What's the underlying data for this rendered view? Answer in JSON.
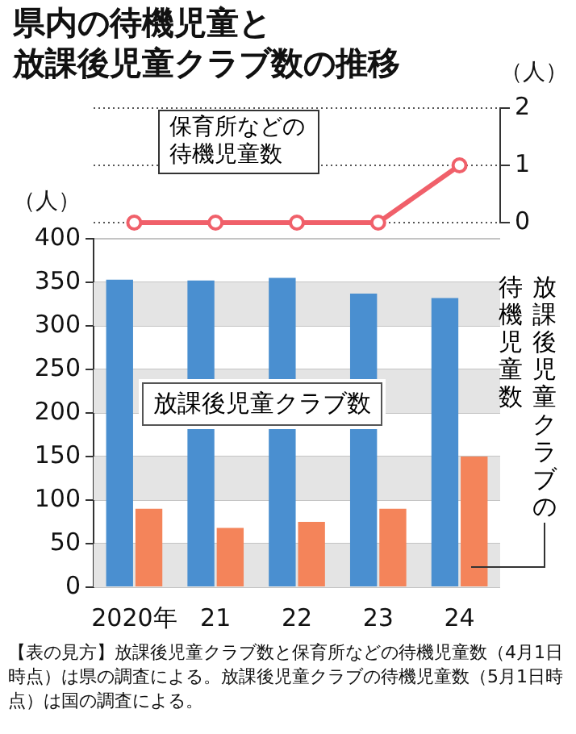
{
  "chart_data": [
    {
      "type": "line",
      "title": "県内の待機児童と放課後児童クラブ数の推移",
      "ylabel": "（人）",
      "ylim": [
        0,
        2
      ],
      "yticks": [
        0,
        1,
        2
      ],
      "grid": "y",
      "legend": false,
      "tick_labels": "y",
      "marker": "circle",
      "series": [
        {
          "name": "保育所などの待機児童数",
          "color": "#f0606a",
          "values": [
            0,
            0,
            0,
            0,
            1
          ]
        }
      ]
    },
    {
      "type": "bar",
      "ylabel": "（人）",
      "categories": [
        "2020年",
        "21",
        "22",
        "23",
        "24"
      ],
      "ylim": [
        0,
        400
      ],
      "yticks": [
        0,
        50,
        100,
        150,
        200,
        250,
        300,
        350,
        400
      ],
      "grid": "y",
      "legend": false,
      "series": [
        {
          "name": "放課後児童クラブ数",
          "color": "#4a8fd0",
          "values": [
            353,
            352,
            355,
            337,
            332
          ]
        },
        {
          "name": "放課後児童クラブの待機児童数",
          "color": "#f4845a",
          "values": [
            90,
            68,
            75,
            90,
            150
          ]
        }
      ],
      "annotations": [
        "【表の見方】放課後児童クラブ数と保育所などの待機児童数（4月1日時点）は県の調査による。放課後児童クラブの待機児童数（5月1日時点）は国の調査による。"
      ]
    }
  ]
}
